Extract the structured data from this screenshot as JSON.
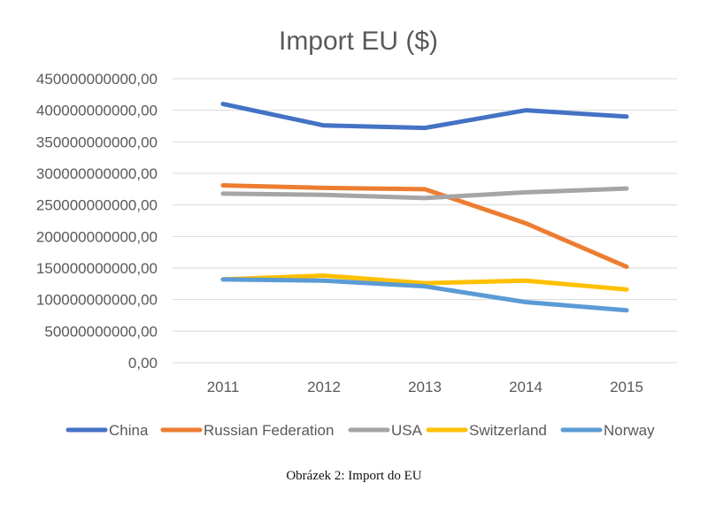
{
  "chart_data": {
    "type": "line",
    "title": "Import EU ($)",
    "xlabel": "",
    "ylabel": "",
    "categories": [
      "2011",
      "2012",
      "2013",
      "2014",
      "2015"
    ],
    "ylim": [
      0,
      450000000000
    ],
    "yticks": [
      0,
      50000000000,
      100000000000,
      150000000000,
      200000000000,
      250000000000,
      300000000000,
      350000000000,
      400000000000,
      450000000000
    ],
    "ytick_labels": [
      "0,00",
      "50000000000,00",
      "100000000000,00",
      "150000000000,00",
      "200000000000,00",
      "250000000000,00",
      "300000000000,00",
      "350000000000,00",
      "400000000000,00",
      "450000000000,00"
    ],
    "grid": true,
    "legend_position": "bottom",
    "series": [
      {
        "name": "China",
        "color": "#4472C4",
        "values": [
          410000000000,
          376000000000,
          372000000000,
          400000000000,
          390000000000
        ]
      },
      {
        "name": "Russian Federation",
        "color": "#ED7D31",
        "values": [
          281000000000,
          277000000000,
          275000000000,
          221000000000,
          152000000000
        ]
      },
      {
        "name": "USA",
        "color": "#A5A5A5",
        "values": [
          268000000000,
          266000000000,
          261000000000,
          270000000000,
          276000000000
        ]
      },
      {
        "name": "Switzerland",
        "color": "#FFC000",
        "values": [
          132000000000,
          138000000000,
          126000000000,
          130000000000,
          116000000000
        ]
      },
      {
        "name": "Norway",
        "color": "#5B9BD5",
        "values": [
          132000000000,
          130000000000,
          121000000000,
          96000000000,
          83000000000
        ]
      }
    ]
  },
  "caption": "Obrázek 2: Import do EU"
}
